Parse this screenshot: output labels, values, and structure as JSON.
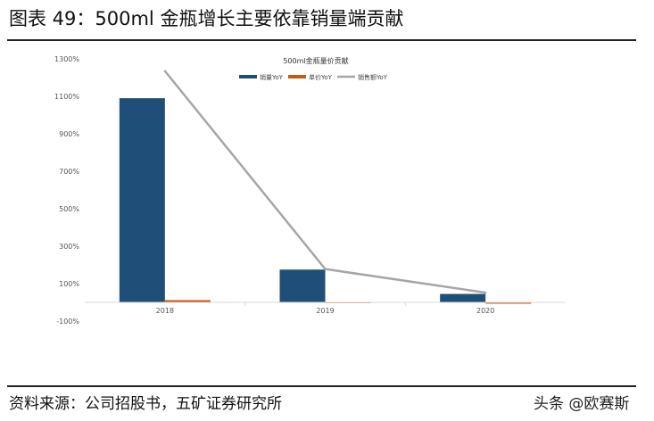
{
  "figure_title": "图表 49：500ml 金瓶增长主要依靠销量端贡献",
  "source_text": "资料来源：公司招股书，五矿证券研究所",
  "watermark_text": "头条 @欧赛斯",
  "colors": {
    "sales_volume": "#1f4e79",
    "unit_price": "#c55a11",
    "sales_revenue": "#a6a6a6",
    "axis": "#d9d9d9",
    "tick_text": "#555555"
  },
  "chart_data": {
    "type": "bar",
    "title": "500ml金瓶量价贡献",
    "categories": [
      "2018",
      "2019",
      "2020"
    ],
    "series": [
      {
        "name": "销量YoY",
        "type": "bar",
        "values": [
          1090,
          175,
          45
        ]
      },
      {
        "name": "单价YoY",
        "type": "bar",
        "values": [
          12,
          0,
          -2
        ]
      },
      {
        "name": "销售额YoY",
        "type": "line",
        "values": [
          1235,
          178,
          52
        ]
      }
    ],
    "y_ticks": [
      "-100%",
      "100%",
      "300%",
      "500%",
      "700%",
      "900%",
      "1100%",
      "1300%"
    ],
    "ylim": [
      -100,
      1300
    ],
    "legend_position": "top-right",
    "grid": false
  }
}
